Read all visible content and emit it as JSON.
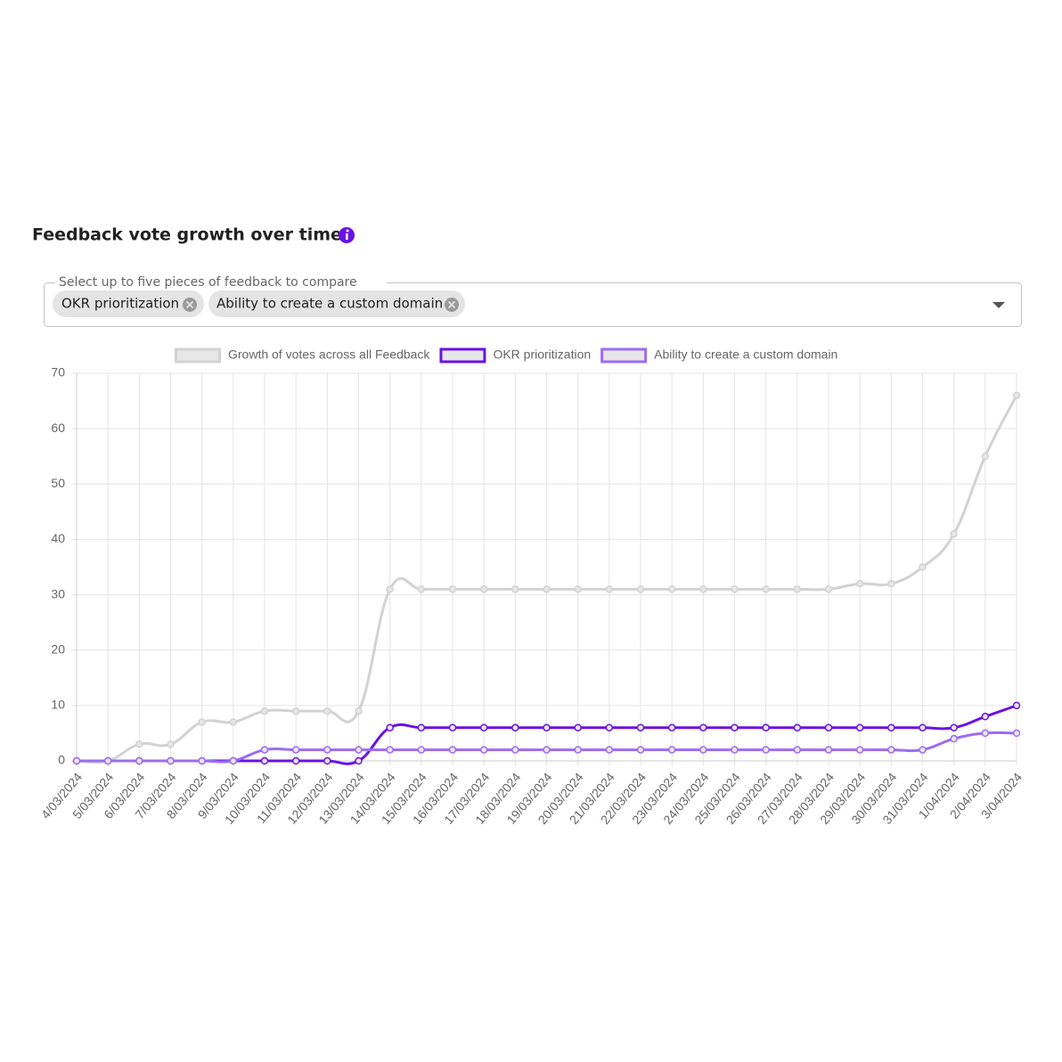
{
  "header": {
    "title": "Feedback vote growth over time"
  },
  "selector": {
    "label": "Select up to five pieces of feedback to compare",
    "chips": [
      "OKR prioritization",
      "Ability to create a custom domain"
    ]
  },
  "chart_data": {
    "type": "line",
    "categories": [
      "4/03/2024",
      "5/03/2024",
      "6/03/2024",
      "7/03/2024",
      "8/03/2024",
      "9/03/2024",
      "10/03/2024",
      "11/03/2024",
      "12/03/2024",
      "13/03/2024",
      "14/03/2024",
      "15/03/2024",
      "16/03/2024",
      "17/03/2024",
      "18/03/2024",
      "19/03/2024",
      "20/03/2024",
      "21/03/2024",
      "22/03/2024",
      "23/03/2024",
      "24/03/2024",
      "25/03/2024",
      "26/03/2024",
      "27/03/2024",
      "28/03/2024",
      "29/03/2024",
      "30/03/2024",
      "31/03/2024",
      "1/04/2024",
      "2/04/2024",
      "3/04/2024"
    ],
    "series": [
      {
        "name": "Growth of votes across all Feedback",
        "color": "#d2d2d2",
        "values": [
          0,
          0,
          3,
          3,
          7,
          7,
          9,
          9,
          9,
          9,
          31,
          31,
          31,
          31,
          31,
          31,
          31,
          31,
          31,
          31,
          31,
          31,
          31,
          31,
          31,
          32,
          32,
          35,
          41,
          55,
          66
        ]
      },
      {
        "name": "OKR prioritization",
        "color": "#6a12e4",
        "values": [
          0,
          0,
          0,
          0,
          0,
          0,
          0,
          0,
          0,
          0,
          6,
          6,
          6,
          6,
          6,
          6,
          6,
          6,
          6,
          6,
          6,
          6,
          6,
          6,
          6,
          6,
          6,
          6,
          6,
          8,
          10
        ]
      },
      {
        "name": "Ability to create a custom domain",
        "color": "#9c6cf2",
        "values": [
          0,
          0,
          0,
          0,
          0,
          0,
          2,
          2,
          2,
          2,
          2,
          2,
          2,
          2,
          2,
          2,
          2,
          2,
          2,
          2,
          2,
          2,
          2,
          2,
          2,
          2,
          2,
          2,
          4,
          5,
          5
        ]
      }
    ],
    "ylim": [
      0,
      70
    ],
    "yticks": [
      0,
      10,
      20,
      30,
      40,
      50,
      60,
      70
    ],
    "grid": true,
    "legend": "top"
  }
}
